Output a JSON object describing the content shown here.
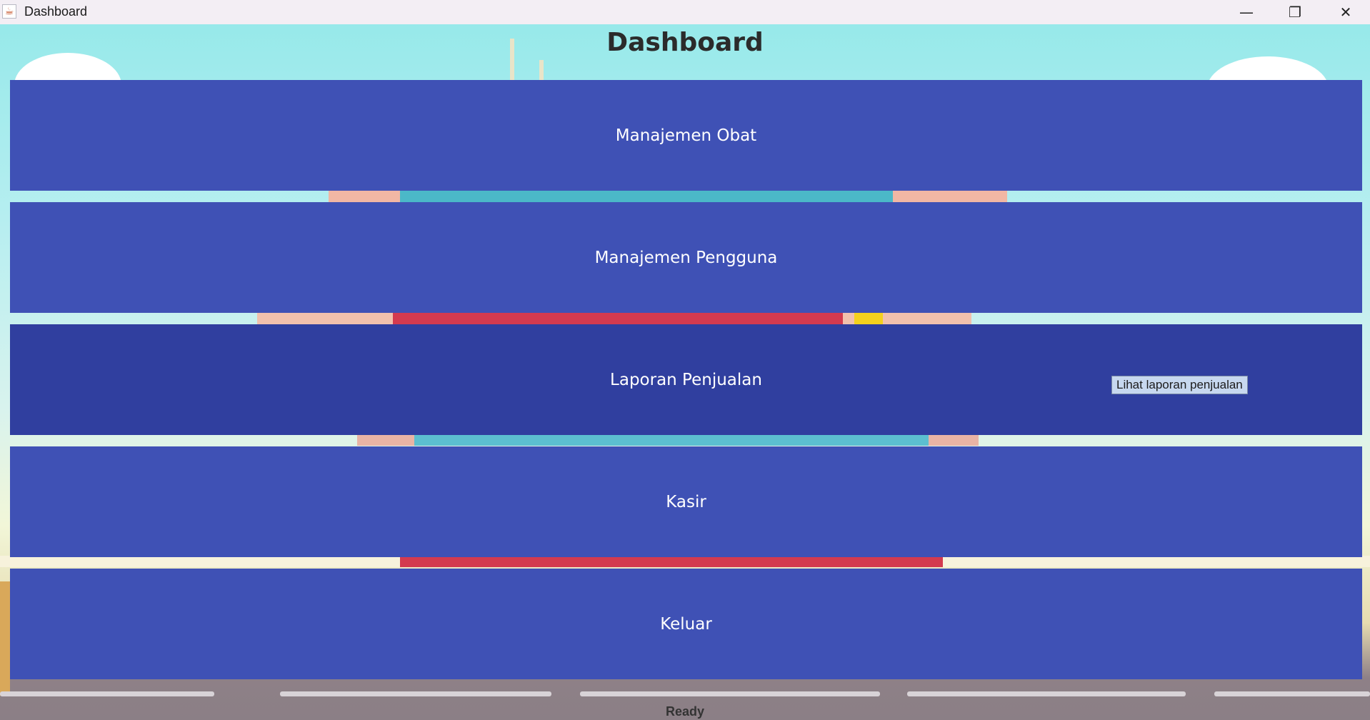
{
  "window": {
    "title": "Dashboard",
    "app_icon": "java-cup-icon",
    "controls": {
      "minimize": "—",
      "maximize": "❐",
      "close": "✕"
    }
  },
  "header": {
    "title": "Dashboard"
  },
  "menu": {
    "items": [
      {
        "label": "Manajemen Obat"
      },
      {
        "label": "Manajemen Pengguna"
      },
      {
        "label": "Laporan Penjualan"
      },
      {
        "label": "Kasir"
      },
      {
        "label": "Keluar"
      }
    ]
  },
  "tooltip": {
    "text": "Lihat laporan penjualan"
  },
  "status": {
    "text": "Ready"
  },
  "colors": {
    "button": "#3f51b5",
    "button_hover": "#303f9f",
    "button_text": "#ffffff",
    "tooltip_bg": "#c7d8ef"
  }
}
